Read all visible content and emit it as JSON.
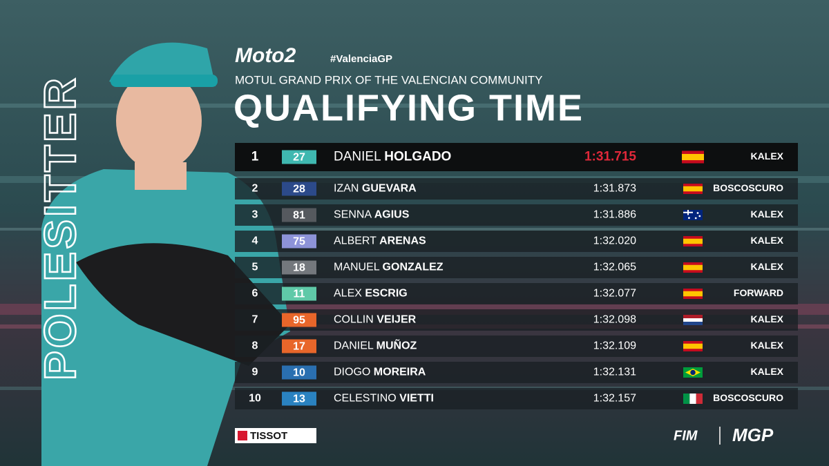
{
  "header": {
    "series": "Moto2",
    "hashtag": "#ValenciaGP",
    "event": "MOTUL GRAND PRIX OF THE VALENCIAN COMMUNITY",
    "title": "QUALIFYING TIME",
    "side_label": "POLESITTER"
  },
  "table": {
    "rows": [
      {
        "position": "1",
        "number": "27",
        "badge_color": "#3fb8b0",
        "first_name": "DANIEL",
        "last_name": "HOLGADO",
        "time": "1:31.715",
        "flag": "ES",
        "team": "KALEX"
      },
      {
        "position": "2",
        "number": "28",
        "badge_color": "#2c4a8a",
        "first_name": "IZAN",
        "last_name": "GUEVARA",
        "time": "1:31.873",
        "flag": "ES",
        "team": "BOSCOSCURO"
      },
      {
        "position": "3",
        "number": "81",
        "badge_color": "#55595e",
        "first_name": "SENNA",
        "last_name": "AGIUS",
        "time": "1:31.886",
        "flag": "AU",
        "team": "KALEX"
      },
      {
        "position": "4",
        "number": "75",
        "badge_color": "#8d93d8",
        "first_name": "ALBERT",
        "last_name": "ARENAS",
        "time": "1:32.020",
        "flag": "ES",
        "team": "KALEX"
      },
      {
        "position": "5",
        "number": "18",
        "badge_color": "#74787d",
        "first_name": "MANUEL",
        "last_name": "GONZALEZ",
        "time": "1:32.065",
        "flag": "ES",
        "team": "KALEX"
      },
      {
        "position": "6",
        "number": "11",
        "badge_color": "#5fc9a8",
        "first_name": "ALEX",
        "last_name": "ESCRIG",
        "time": "1:32.077",
        "flag": "ES",
        "team": "FORWARD"
      },
      {
        "position": "7",
        "number": "95",
        "badge_color": "#e8662a",
        "first_name": "COLLIN",
        "last_name": "VEIJER",
        "time": "1:32.098",
        "flag": "NL",
        "team": "KALEX"
      },
      {
        "position": "8",
        "number": "17",
        "badge_color": "#e8662a",
        "first_name": "DANIEL",
        "last_name": "MUÑOZ",
        "time": "1:32.109",
        "flag": "ES",
        "team": "KALEX"
      },
      {
        "position": "9",
        "number": "10",
        "badge_color": "#2a6fb0",
        "first_name": "DIOGO",
        "last_name": "MOREIRA",
        "time": "1:32.131",
        "flag": "BR",
        "team": "KALEX"
      },
      {
        "position": "10",
        "number": "13",
        "badge_color": "#2a82c0",
        "first_name": "CELESTINO",
        "last_name": "VIETTI",
        "time": "1:32.157",
        "flag": "IT",
        "team": "BOSCOSCURO"
      }
    ]
  },
  "footer": {
    "timing": "TISSOT",
    "fim": "FIM",
    "mgp": "MGP"
  }
}
